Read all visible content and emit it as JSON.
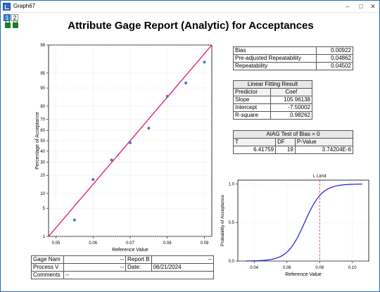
{
  "window": {
    "title": "Graph67",
    "tabs": [
      "1",
      "2"
    ],
    "controls": {
      "minimize": "–",
      "maximize": "□",
      "close": "✕"
    },
    "toolbar_icons": [
      "lock-icon",
      "lock-icon"
    ]
  },
  "graph": {
    "title": "Attribute Gage Report (Analytic) for Acceptances"
  },
  "stats": {
    "rows": [
      {
        "label": "Bias",
        "value": "0.00922"
      },
      {
        "label": "Pre-adjusted Repeatability",
        "value": "0.04862"
      },
      {
        "label": "Repeatability",
        "value": "0.04502"
      }
    ]
  },
  "linear_fit": {
    "title": "Linear Fitting Result",
    "col_predictor": "Predictor",
    "col_coef": "Coef",
    "rows": [
      {
        "label": "Slope",
        "value": "105.96138"
      },
      {
        "label": "Intercept",
        "value": "-7.50002"
      },
      {
        "label": "R-square",
        "value": "0.98262"
      }
    ]
  },
  "bias_test": {
    "title": "AIAG Test of Bias = 0",
    "headers": [
      "T",
      "DF",
      "P-Value"
    ],
    "values": [
      "6.41759",
      "19",
      "3.74204E-6"
    ]
  },
  "footer": {
    "gage_label": "Gage Nam",
    "gage_value": "--",
    "report_label": "Report B",
    "report_value": "--",
    "process_label": "Process V",
    "process_value": "--",
    "date_label": "Date:",
    "date_value": "06/21/2024",
    "comments_label": "Comments",
    "comments_value": "--"
  },
  "chart_data": [
    {
      "type": "scatter",
      "title": "",
      "xlabel": "Reference Value",
      "ylabel": "Percentage of Acceptance",
      "xlim": [
        0.048,
        0.092
      ],
      "y_scale": "probability",
      "x_ticks": [
        "0.05",
        "0.06",
        "0.07",
        "0.08",
        "0.09"
      ],
      "x_tick_values": [
        0.05,
        0.06,
        0.07,
        0.08,
        0.09
      ],
      "y_ticks": [
        "1",
        "5",
        "10",
        "20",
        "30",
        "40",
        "50",
        "60",
        "70",
        "80",
        "90",
        "95",
        "99"
      ],
      "y_tick_values": [
        1,
        5,
        10,
        20,
        30,
        40,
        50,
        60,
        70,
        80,
        90,
        95,
        99
      ],
      "points": [
        {
          "x": 0.055,
          "y": 2.7
        },
        {
          "x": 0.06,
          "y": 17.3
        },
        {
          "x": 0.065,
          "y": 32.0
        },
        {
          "x": 0.07,
          "y": 48.0
        },
        {
          "x": 0.075,
          "y": 62.0
        },
        {
          "x": 0.08,
          "y": 86.0
        },
        {
          "x": 0.085,
          "y": 92.0
        },
        {
          "x": 0.09,
          "y": 97.2
        }
      ],
      "fit_line": {
        "x": [
          0.048,
          0.092
        ],
        "y": [
          1.0,
          99.0
        ]
      },
      "grid": true,
      "colors": {
        "points": "#4a78c9",
        "fit": "#e0166b"
      }
    },
    {
      "type": "line",
      "title": "L Limit",
      "xlabel": "Reference Value",
      "ylabel": "Probability of Acceptance",
      "xlim": [
        0.03,
        0.11
      ],
      "ylim": [
        0,
        1.05
      ],
      "x_ticks": [
        "0.04",
        "0.06",
        "0.08",
        "0.10"
      ],
      "x_tick_values": [
        0.04,
        0.06,
        0.08,
        0.1
      ],
      "y_ticks": [
        "0.0",
        "0.5",
        "1.0"
      ],
      "y_tick_values": [
        0.0,
        0.5,
        1.0
      ],
      "curve": {
        "center": 0.0708,
        "scale": 0.00905,
        "x_range": [
          0.035,
          0.106
        ]
      },
      "limit_line_x": 0.08,
      "grid": true,
      "colors": {
        "curve": "#1a1ad6",
        "limit": "#e03030"
      }
    }
  ]
}
